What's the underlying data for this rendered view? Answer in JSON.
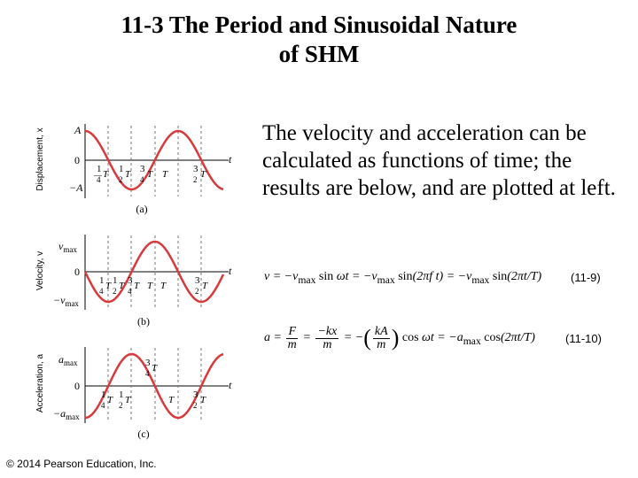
{
  "slide": {
    "title_line1": "11-3 The Period and Sinusoidal Nature",
    "title_line2": "of SHM",
    "paragraph": "The velocity and acceleration can be calculated as functions of time; the results are below, and are plotted at left.",
    "copyright": "© 2014 Pearson Education, Inc."
  },
  "equations": [
    {
      "text": "v = −v_max sin ωt = −v_max sin(2πft) = −v_max sin(2πt/T)",
      "number": "(11-9)"
    },
    {
      "text": "a = F/m = −kx/m = −(kA/m) cos ωt = −a_max cos(2πt/T)",
      "number": "(11-10)"
    }
  ],
  "graphs": [
    {
      "panel_label": "(a)",
      "y_axis_title": "Displacement, x",
      "y_top": "A",
      "y_zero": "0",
      "y_bottom": "−A",
      "t_label": "t"
    },
    {
      "panel_label": "(b)",
      "y_axis_title": "Velocity, v",
      "y_top": "v_max",
      "y_zero": "0",
      "y_bottom": "−v_max",
      "t_label": "t"
    },
    {
      "panel_label": "(c)",
      "y_axis_title": "Acceleration, a",
      "y_top": "a_max",
      "y_zero": "0",
      "y_bottom": "−a_max",
      "t_label": "t"
    }
  ],
  "colors": {
    "curve": "#d8393b",
    "axis": "#000000",
    "dashed": "#777777"
  }
}
